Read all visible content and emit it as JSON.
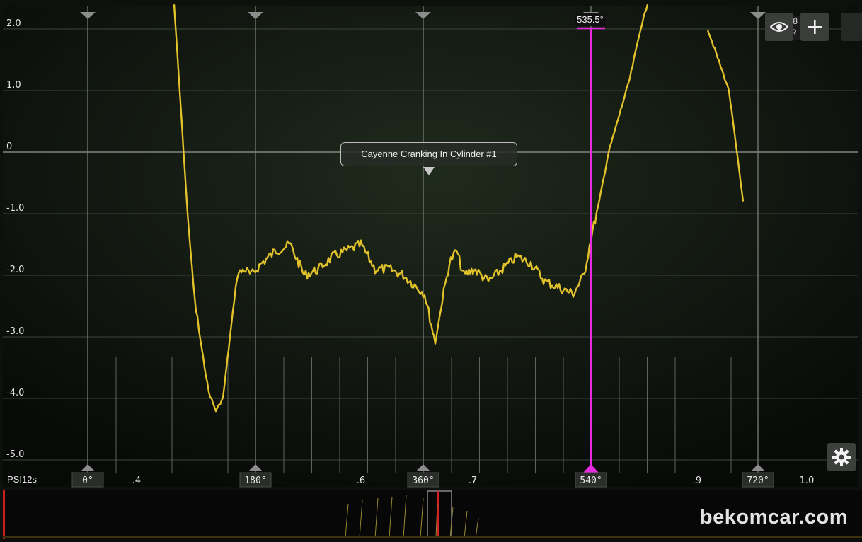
{
  "chart_data": {
    "type": "line",
    "title": "Cayenne Cranking In Cylinder #1",
    "ylabel": "PSI",
    "ylim": [
      -5.5,
      2.4
    ],
    "xlim": [
      0.0,
      1.05
    ],
    "y_ticks": [
      "2.0",
      "1.0",
      "0",
      "-1.0",
      "-2.0",
      "-3.0",
      "-4.0",
      "-5.0"
    ],
    "x_ticks": [
      ".4",
      ".6",
      ".7",
      ".9",
      "1.0"
    ],
    "x_unit_label": "s",
    "grid": true,
    "series": [
      {
        "color": "#e2c22b",
        "x": [
          0.246,
          0.255,
          0.265,
          0.275,
          0.285,
          0.295,
          0.305,
          0.315,
          0.325,
          0.335,
          0.345,
          0.355,
          0.37,
          0.39,
          0.41,
          0.43,
          0.45,
          0.47,
          0.49,
          0.51,
          0.53,
          0.55,
          0.57,
          0.59,
          0.6,
          0.615,
          0.625,
          0.635,
          0.645,
          0.655,
          0.67,
          0.69,
          0.71,
          0.73,
          0.75,
          0.77,
          0.79,
          0.81,
          0.825,
          0.835,
          0.845,
          0.86,
          0.875,
          0.89,
          0.905,
          0.915
        ],
        "y": [
          2.4,
          0.8,
          -1.0,
          -2.4,
          -3.2,
          -3.9,
          -4.2,
          -4.0,
          -3.0,
          -2.0,
          -1.9,
          -2.0,
          -1.8,
          -1.6,
          -1.5,
          -2.0,
          -1.9,
          -1.7,
          -1.6,
          -1.5,
          -1.9,
          -1.9,
          -2.0,
          -2.2,
          -2.3,
          -3.1,
          -2.4,
          -1.8,
          -1.6,
          -2.0,
          -1.9,
          -2.1,
          -1.9,
          -1.7,
          -1.8,
          -2.1,
          -2.2,
          -2.3,
          -2.0,
          -1.4,
          -0.9,
          0.0,
          0.6,
          1.2,
          2.0,
          2.4
        ]
      },
      {
        "color": "#e2c22b",
        "x": [
          1.0,
          1.03,
          1.05
        ],
        "y": [
          2.0,
          1.0,
          -0.8
        ]
      }
    ],
    "markers": [
      {
        "label": "0°"
      },
      {
        "label": "180°"
      },
      {
        "label": "360°"
      },
      {
        "label": "540°"
      },
      {
        "label": "720°"
      }
    ],
    "cursor": {
      "label": "535.5°",
      "color": "#e62be0",
      "value": 535.5
    }
  },
  "ui": {
    "psi_label": "PSI",
    "time_label": "12s",
    "brand": "bekomcar.com",
    "edge_tag": ".8 R",
    "icons": {
      "eye": "eye-icon",
      "plus": "plus-icon",
      "gear": "gear-icon"
    }
  }
}
